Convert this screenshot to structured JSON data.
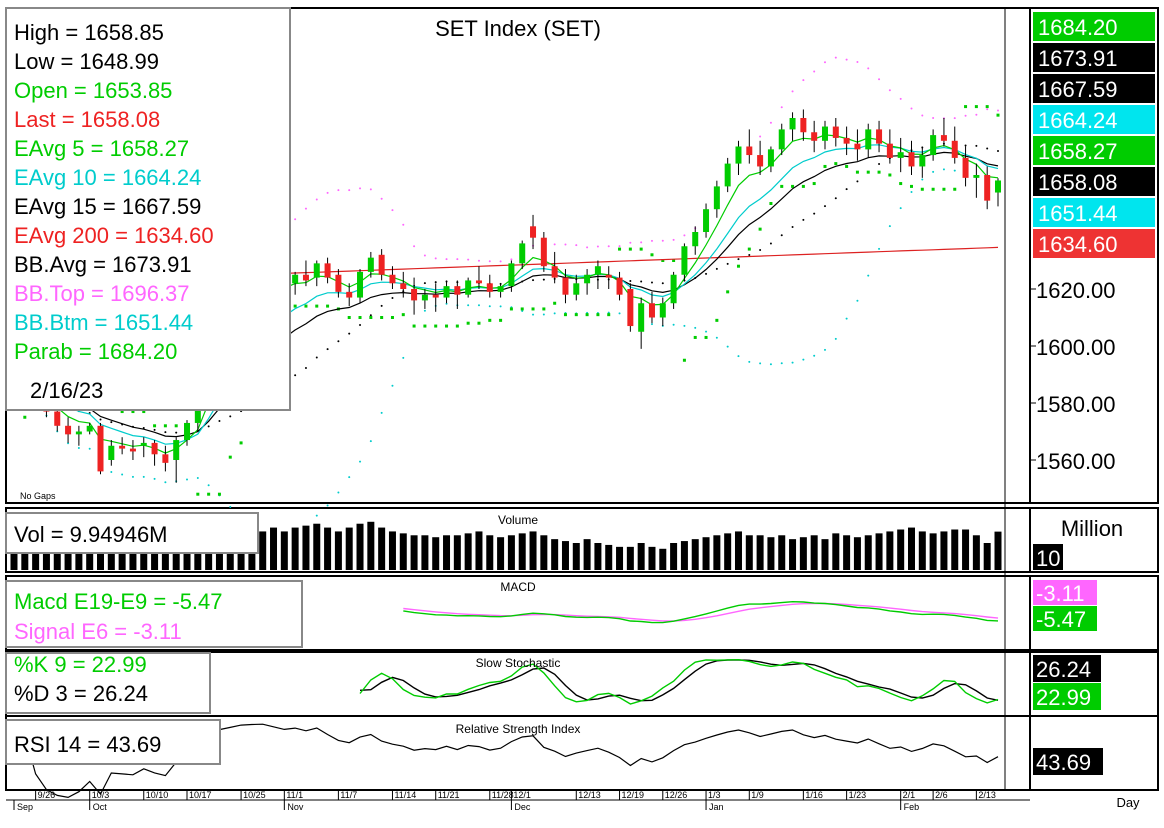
{
  "chart_data": {
    "type": "candlestick",
    "title": "SET Index (SET)",
    "date": "2/16/23",
    "no_gaps_label": "No Gaps",
    "x_period": "Day",
    "info_box": {
      "high": "High = 1658.85",
      "low": "Low = 1648.99",
      "open": "Open = 1653.85",
      "last": "Last = 1658.08",
      "ema5": "EAvg 5 = 1658.27",
      "ema10": "EAvg 10 = 1664.24",
      "ema15": "EAvg 15 = 1667.59",
      "ema200": "EAvg 200 = 1634.60",
      "bb_avg": "BB.Avg = 1673.91",
      "bb_top": "BB.Top = 1696.37",
      "bb_btm": "BB.Btm = 1651.44",
      "parab": "Parab = 1684.20"
    },
    "price_axis": {
      "ticks": [
        1560,
        1580,
        1600,
        1620
      ],
      "tick_labels": [
        "1560.00",
        "1580.00",
        "1600.00",
        "1620.00"
      ]
    },
    "right_labels": [
      {
        "text": "1684.20",
        "value": 1684.2,
        "bg": "#00cc00",
        "fg": "#ffffff"
      },
      {
        "text": "1673.91",
        "value": 1673.91,
        "bg": "#000000",
        "fg": "#ffffff"
      },
      {
        "text": "1667.59",
        "value": 1667.59,
        "bg": "#000000",
        "fg": "#ffffff"
      },
      {
        "text": "1664.24",
        "value": 1664.24,
        "bg": "#00e5ee",
        "fg": "#ffffff"
      },
      {
        "text": "1658.27",
        "value": 1658.27,
        "bg": "#00cc00",
        "fg": "#ffffff"
      },
      {
        "text": "1658.08",
        "value": 1658.08,
        "bg": "#000000",
        "fg": "#ffffff"
      },
      {
        "text": "1651.44",
        "value": 1651.44,
        "bg": "#00e5ee",
        "fg": "#ffffff"
      },
      {
        "text": "1634.60",
        "value": 1634.6,
        "bg": "#ee3333",
        "fg": "#ffffff"
      }
    ],
    "x_labels": [
      {
        "i": 2,
        "text": "9/26"
      },
      {
        "i": 7,
        "text": "10/3"
      },
      {
        "i": 12,
        "text": "10/10"
      },
      {
        "i": 16,
        "text": "10/17"
      },
      {
        "i": 21,
        "text": "10/25"
      },
      {
        "i": 25,
        "text": "11/1"
      },
      {
        "i": 30,
        "text": "11/7"
      },
      {
        "i": 35,
        "text": "11/14"
      },
      {
        "i": 39,
        "text": "11/21"
      },
      {
        "i": 44,
        "text": "11/28"
      },
      {
        "i": 46,
        "text": "12/1"
      },
      {
        "i": 52,
        "text": "12/13"
      },
      {
        "i": 56,
        "text": "12/19"
      },
      {
        "i": 60,
        "text": "12/26"
      },
      {
        "i": 64,
        "text": "1/3"
      },
      {
        "i": 68,
        "text": "1/9"
      },
      {
        "i": 73,
        "text": "1/16"
      },
      {
        "i": 77,
        "text": "1/23"
      },
      {
        "i": 82,
        "text": "2/1"
      },
      {
        "i": 85,
        "text": "2/6"
      },
      {
        "i": 89,
        "text": "2/13"
      }
    ],
    "month_labels": [
      {
        "i": 0,
        "text": "Sep"
      },
      {
        "i": 7,
        "text": "Oct"
      },
      {
        "i": 25,
        "text": "Nov"
      },
      {
        "i": 46,
        "text": "Dec"
      },
      {
        "i": 64,
        "text": "Jan"
      },
      {
        "i": 82,
        "text": "Feb"
      }
    ],
    "candles": [
      [
        1590,
        1592,
        1582,
        1584
      ],
      [
        1584,
        1588,
        1579,
        1586
      ],
      [
        1586,
        1590,
        1580,
        1582
      ],
      [
        1582,
        1584,
        1575,
        1577
      ],
      [
        1577,
        1580,
        1570,
        1572
      ],
      [
        1572,
        1575,
        1566,
        1569
      ],
      [
        1569,
        1572,
        1565,
        1570
      ],
      [
        1570,
        1573,
        1569,
        1572
      ],
      [
        1572,
        1573,
        1555,
        1556
      ],
      [
        1560,
        1567,
        1558,
        1565
      ],
      [
        1565,
        1568,
        1562,
        1564
      ],
      [
        1564,
        1567,
        1560,
        1563
      ],
      [
        1565,
        1568,
        1561,
        1566
      ],
      [
        1566,
        1567,
        1558,
        1562
      ],
      [
        1562,
        1565,
        1556,
        1559
      ],
      [
        1560,
        1568,
        1552,
        1567
      ],
      [
        1567,
        1574,
        1565,
        1573
      ],
      [
        1573,
        1580,
        1570,
        1578
      ],
      [
        1592,
        1600,
        1588,
        1599
      ],
      [
        1605,
        1612,
        1600,
        1610
      ],
      [
        1610,
        1618,
        1606,
        1616
      ],
      [
        1616,
        1625,
        1614,
        1623
      ],
      [
        1623,
        1628,
        1619,
        1625
      ],
      [
        1625,
        1630,
        1621,
        1626
      ],
      [
        1626,
        1630,
        1622,
        1624
      ],
      [
        1626,
        1629,
        1621,
        1622
      ],
      [
        1622,
        1626,
        1618,
        1625
      ],
      [
        1625,
        1630,
        1621,
        1623
      ],
      [
        1624,
        1630,
        1621,
        1629
      ],
      [
        1629,
        1631,
        1622,
        1624
      ],
      [
        1625,
        1627,
        1617,
        1619
      ],
      [
        1619,
        1622,
        1614,
        1617
      ],
      [
        1617,
        1627,
        1615,
        1626
      ],
      [
        1626,
        1633,
        1624,
        1631
      ],
      [
        1632,
        1634,
        1623,
        1625
      ],
      [
        1625,
        1628,
        1620,
        1622
      ],
      [
        1622,
        1626,
        1617,
        1620
      ],
      [
        1620,
        1624,
        1611,
        1616
      ],
      [
        1616,
        1620,
        1613,
        1618
      ],
      [
        1618,
        1622,
        1612,
        1617
      ],
      [
        1617,
        1623,
        1615,
        1621
      ],
      [
        1621,
        1623,
        1613,
        1618
      ],
      [
        1618,
        1624,
        1617,
        1623
      ],
      [
        1623,
        1628,
        1620,
        1622
      ],
      [
        1622,
        1625,
        1617,
        1619
      ],
      [
        1619,
        1622,
        1617,
        1621
      ],
      [
        1621,
        1630,
        1619,
        1629
      ],
      [
        1629,
        1637,
        1627,
        1636
      ],
      [
        1642,
        1646,
        1634,
        1638
      ],
      [
        1638,
        1640,
        1626,
        1628
      ],
      [
        1628,
        1633,
        1622,
        1624
      ],
      [
        1624,
        1627,
        1615,
        1618
      ],
      [
        1618,
        1625,
        1616,
        1622
      ],
      [
        1622,
        1627,
        1618,
        1625
      ],
      [
        1625,
        1630,
        1620,
        1628
      ],
      [
        1625,
        1628,
        1620,
        1624
      ],
      [
        1624,
        1626,
        1616,
        1618
      ],
      [
        1620,
        1622,
        1605,
        1607
      ],
      [
        1605,
        1617,
        1599,
        1615
      ],
      [
        1615,
        1619,
        1608,
        1610
      ],
      [
        1610,
        1617,
        1607,
        1615
      ],
      [
        1615,
        1626,
        1613,
        1625
      ],
      [
        1625,
        1636,
        1623,
        1635
      ],
      [
        1635,
        1642,
        1632,
        1640
      ],
      [
        1640,
        1650,
        1638,
        1648
      ],
      [
        1648,
        1658,
        1645,
        1656
      ],
      [
        1656,
        1666,
        1654,
        1664
      ],
      [
        1664,
        1672,
        1660,
        1670
      ],
      [
        1670,
        1676,
        1664,
        1667
      ],
      [
        1667,
        1672,
        1660,
        1663
      ],
      [
        1663,
        1670,
        1661,
        1669
      ],
      [
        1669,
        1678,
        1667,
        1676
      ],
      [
        1676,
        1682,
        1672,
        1680
      ],
      [
        1680,
        1683,
        1672,
        1675
      ],
      [
        1675,
        1679,
        1668,
        1672
      ],
      [
        1672,
        1679,
        1669,
        1677
      ],
      [
        1677,
        1680,
        1670,
        1673
      ],
      [
        1673,
        1677,
        1667,
        1671
      ],
      [
        1671,
        1676,
        1665,
        1669
      ],
      [
        1669,
        1678,
        1666,
        1676
      ],
      [
        1676,
        1679,
        1668,
        1671
      ],
      [
        1671,
        1676,
        1664,
        1666
      ],
      [
        1666,
        1673,
        1661,
        1668
      ],
      [
        1668,
        1672,
        1660,
        1663
      ],
      [
        1663,
        1670,
        1659,
        1667
      ],
      [
        1667,
        1676,
        1665,
        1674
      ],
      [
        1674,
        1680,
        1670,
        1672
      ],
      [
        1672,
        1677,
        1664,
        1666
      ],
      [
        1666,
        1670,
        1656,
        1659
      ],
      [
        1659,
        1664,
        1652,
        1660
      ],
      [
        1660,
        1663,
        1648,
        1651
      ],
      [
        1653.85,
        1658.85,
        1648.99,
        1658.08
      ]
    ],
    "ema200": {
      "start": 1622,
      "end": 1634.6
    },
    "volume": {
      "label": "Volume",
      "readout": "Vol = 9.94946M",
      "unit": "Million",
      "axis_label": "10",
      "values": [
        6,
        6.5,
        6,
        7,
        6,
        6,
        6.5,
        6,
        7,
        6.5,
        7,
        6,
        6.5,
        7,
        6,
        6.5,
        6,
        7,
        7.5,
        8,
        8.5,
        9,
        9.5,
        10,
        11,
        10,
        11,
        11.5,
        12,
        11,
        10,
        11,
        12,
        12.5,
        11,
        10,
        9.5,
        9,
        9,
        8.5,
        9,
        9,
        9.5,
        10,
        9,
        8.5,
        9,
        9.5,
        10,
        9,
        8,
        7.5,
        7,
        8,
        7,
        6.5,
        6,
        6,
        7,
        6,
        5.5,
        7,
        7.5,
        8,
        8.5,
        9,
        9.5,
        10,
        9,
        9,
        8.5,
        9,
        8,
        8.5,
        9,
        8,
        9.5,
        9,
        8.5,
        9,
        9.5,
        10,
        10.5,
        11,
        10,
        9.5,
        10,
        10.5,
        10.5,
        9,
        7,
        9.94946
      ]
    },
    "macd": {
      "label": "MACD",
      "macd_readout": "Macd E19-E9 = -5.47",
      "signal_readout": "Signal E6 = -3.11",
      "right_labels": [
        {
          "text": "-3.11",
          "bg": "#ff66ff"
        },
        {
          "text": "-5.47",
          "bg": "#00cc00"
        }
      ],
      "macd": [],
      "signal": []
    },
    "stochastic": {
      "label": "Slow Stochastic",
      "k_readout": "%K 9 = 22.99",
      "d_readout": "%D 3 = 26.24",
      "right_labels": [
        {
          "text": "26.24",
          "bg": "#000000"
        },
        {
          "text": "22.99",
          "bg": "#00cc00"
        }
      ]
    },
    "rsi": {
      "label": "Relative Strength Index",
      "readout": "RSI 14 = 43.69",
      "right_labels": [
        {
          "text": "43.69",
          "bg": "#000000"
        }
      ]
    },
    "colors": {
      "up": "#00cc00",
      "down": "#ee2222",
      "ema5": "#00cc00",
      "ema10": "#00cccc",
      "ema15": "#000000",
      "ema200": "#dd2222",
      "bb": "#ff66ff",
      "parab": "#00cc00"
    }
  }
}
